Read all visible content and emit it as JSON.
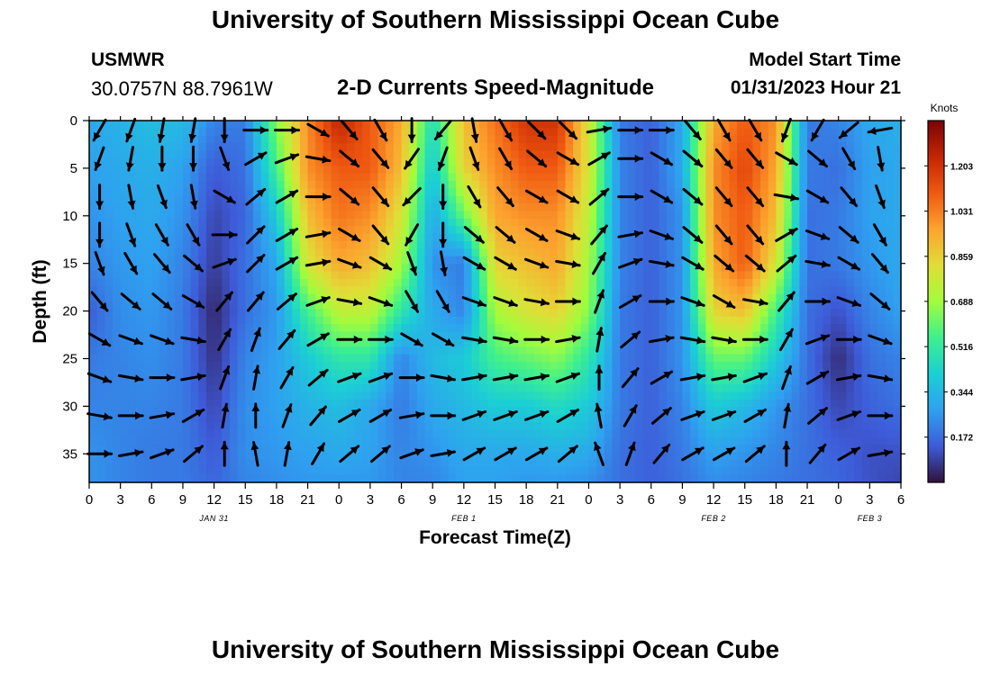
{
  "header": {
    "title": "University of Southern Mississippi Ocean Cube",
    "station": "USMWR",
    "coordinates": "30.0757N  88.7961W",
    "subtitle": "2-D Currents Speed-Magnitude",
    "start_label": "Model Start Time",
    "start_value": "01/31/2023 Hour 21"
  },
  "footer": {
    "title": "University of Southern Mississippi Ocean Cube"
  },
  "colors": {
    "palette": [
      "#30123b",
      "#3e5bd8",
      "#2fa0f0",
      "#1bcfd4",
      "#3ef08e",
      "#a2fc3c",
      "#e1dd37",
      "#fca32f",
      "#ef5911",
      "#c42503",
      "#7a0403"
    ],
    "arrow": "#000000"
  },
  "chart_data": {
    "type": "heatmap",
    "xlabel": "Forecast Time(Z)",
    "ylabel": "Depth (ft)",
    "x_range": [
      0,
      78
    ],
    "x_unit": "forecast hours from 00Z Jan 31",
    "x_ticks": [
      {
        "h": 0,
        "label": "0"
      },
      {
        "h": 3,
        "label": "3"
      },
      {
        "h": 6,
        "label": "6"
      },
      {
        "h": 9,
        "label": "9"
      },
      {
        "h": 12,
        "label": "12"
      },
      {
        "h": 15,
        "label": "15"
      },
      {
        "h": 18,
        "label": "18"
      },
      {
        "h": 21,
        "label": "21"
      },
      {
        "h": 24,
        "label": "0"
      },
      {
        "h": 27,
        "label": "3"
      },
      {
        "h": 30,
        "label": "6"
      },
      {
        "h": 33,
        "label": "9"
      },
      {
        "h": 36,
        "label": "12"
      },
      {
        "h": 39,
        "label": "15"
      },
      {
        "h": 42,
        "label": "18"
      },
      {
        "h": 45,
        "label": "21"
      },
      {
        "h": 48,
        "label": "0"
      },
      {
        "h": 51,
        "label": "3"
      },
      {
        "h": 54,
        "label": "6"
      },
      {
        "h": 57,
        "label": "9"
      },
      {
        "h": 60,
        "label": "12"
      },
      {
        "h": 63,
        "label": "15"
      },
      {
        "h": 66,
        "label": "18"
      },
      {
        "h": 69,
        "label": "21"
      },
      {
        "h": 72,
        "label": "0"
      },
      {
        "h": 75,
        "label": "3"
      },
      {
        "h": 78,
        "label": "6"
      }
    ],
    "date_labels": [
      {
        "h": 12,
        "label": "JAN 31"
      },
      {
        "h": 36,
        "label": "FEB 1"
      },
      {
        "h": 60,
        "label": "FEB 2"
      },
      {
        "h": 75,
        "label": "FEB 3"
      }
    ],
    "y_range": [
      0,
      38
    ],
    "y_inverted": true,
    "y_ticks": [
      0,
      5,
      10,
      15,
      20,
      25,
      30,
      35
    ],
    "colorbar": {
      "title": "Knots",
      "range": [
        0.0,
        1.375
      ],
      "tick_values": [
        1.203,
        1.031,
        0.859,
        0.688,
        0.516,
        0.344,
        0.172
      ],
      "tick_labels": [
        "1.203",
        "1.031",
        "0.859",
        "0.688",
        "0.516",
        "0.344",
        "0.172"
      ]
    },
    "grid": false,
    "speed_field": {
      "x_hours": [
        0,
        3,
        6,
        9,
        12,
        15,
        18,
        21,
        24,
        27,
        30,
        33,
        36,
        39,
        42,
        45,
        48,
        51,
        54,
        57,
        60,
        63,
        66,
        69,
        72,
        75,
        78
      ],
      "depths_ft": [
        0,
        5,
        10,
        15,
        20,
        25,
        30,
        35,
        38
      ],
      "values_knots": [
        [
          0.3,
          0.33,
          0.36,
          0.35,
          0.22,
          0.2,
          0.65,
          1.0,
          1.25,
          1.1,
          0.95,
          0.45,
          0.9,
          1.05,
          1.2,
          1.2,
          0.8,
          0.2,
          0.15,
          0.3,
          0.95,
          1.1,
          1.0,
          0.2,
          0.22,
          0.3,
          0.32
        ],
        [
          0.28,
          0.3,
          0.32,
          0.28,
          0.14,
          0.18,
          0.55,
          1.0,
          1.1,
          1.1,
          0.9,
          0.38,
          0.85,
          1.0,
          1.1,
          1.1,
          0.8,
          0.22,
          0.15,
          0.3,
          1.0,
          1.15,
          0.95,
          0.2,
          0.18,
          0.28,
          0.3
        ],
        [
          0.25,
          0.28,
          0.3,
          0.25,
          0.1,
          0.16,
          0.4,
          0.9,
          1.05,
          1.0,
          0.8,
          0.3,
          0.6,
          0.95,
          1.0,
          1.0,
          0.75,
          0.22,
          0.15,
          0.25,
          1.0,
          1.1,
          0.9,
          0.18,
          0.2,
          0.28,
          0.3
        ],
        [
          0.22,
          0.26,
          0.28,
          0.22,
          0.08,
          0.18,
          0.3,
          0.8,
          0.95,
          0.9,
          0.7,
          0.25,
          0.2,
          0.85,
          0.9,
          0.95,
          0.7,
          0.22,
          0.15,
          0.25,
          0.95,
          1.1,
          0.8,
          0.18,
          0.2,
          0.26,
          0.3
        ],
        [
          0.14,
          0.24,
          0.26,
          0.2,
          0.04,
          0.18,
          0.26,
          0.55,
          0.75,
          0.75,
          0.5,
          0.3,
          0.22,
          0.7,
          0.8,
          0.85,
          0.65,
          0.2,
          0.15,
          0.25,
          0.85,
          0.9,
          0.55,
          0.18,
          0.12,
          0.22,
          0.28
        ],
        [
          0.2,
          0.22,
          0.24,
          0.2,
          0.06,
          0.22,
          0.28,
          0.4,
          0.5,
          0.5,
          0.22,
          0.35,
          0.4,
          0.55,
          0.6,
          0.65,
          0.5,
          0.2,
          0.15,
          0.25,
          0.6,
          0.6,
          0.4,
          0.18,
          0.05,
          0.18,
          0.22
        ],
        [
          0.22,
          0.22,
          0.22,
          0.2,
          0.1,
          0.24,
          0.28,
          0.33,
          0.36,
          0.3,
          0.2,
          0.3,
          0.35,
          0.4,
          0.4,
          0.45,
          0.4,
          0.2,
          0.15,
          0.22,
          0.4,
          0.35,
          0.26,
          0.18,
          0.1,
          0.15,
          0.18
        ],
        [
          0.25,
          0.22,
          0.2,
          0.2,
          0.14,
          0.24,
          0.26,
          0.28,
          0.3,
          0.28,
          0.22,
          0.25,
          0.3,
          0.3,
          0.3,
          0.32,
          0.3,
          0.18,
          0.15,
          0.2,
          0.28,
          0.25,
          0.22,
          0.18,
          0.15,
          0.12,
          0.12
        ],
        [
          0.25,
          0.22,
          0.2,
          0.2,
          0.16,
          0.22,
          0.24,
          0.26,
          0.26,
          0.26,
          0.22,
          0.22,
          0.28,
          0.28,
          0.26,
          0.26,
          0.24,
          0.18,
          0.15,
          0.18,
          0.24,
          0.22,
          0.2,
          0.18,
          0.16,
          0.12,
          0.1
        ]
      ]
    },
    "vectors": {
      "depths_ft": [
        1,
        4,
        8,
        12,
        15,
        19,
        23,
        27,
        31,
        35
      ],
      "x_hours": [
        1,
        4,
        7,
        10,
        13,
        16,
        19,
        22,
        25,
        28,
        31,
        34,
        37,
        40,
        43,
        46,
        49,
        52,
        55,
        58,
        61,
        64,
        67,
        70,
        73,
        76
      ],
      "directions_deg": [
        [
          210,
          200,
          190,
          190,
          180,
          90,
          90,
          120,
          140,
          150,
          180,
          220,
          170,
          150,
          135,
          135,
          80,
          90,
          90,
          140,
          150,
          150,
          200,
          210,
          230,
          260
        ],
        [
          200,
          190,
          180,
          180,
          160,
          60,
          70,
          100,
          130,
          140,
          215,
          200,
          160,
          150,
          130,
          120,
          60,
          90,
          120,
          130,
          140,
          140,
          120,
          130,
          150,
          170
        ],
        [
          180,
          170,
          160,
          170,
          120,
          50,
          60,
          90,
          130,
          140,
          225,
          180,
          150,
          140,
          120,
          120,
          50,
          90,
          120,
          130,
          140,
          140,
          100,
          120,
          140,
          160
        ],
        [
          180,
          160,
          150,
          150,
          90,
          45,
          60,
          80,
          120,
          140,
          210,
          180,
          130,
          130,
          120,
          110,
          40,
          80,
          110,
          130,
          140,
          140,
          60,
          110,
          130,
          150
        ],
        [
          160,
          150,
          140,
          130,
          70,
          45,
          60,
          80,
          110,
          120,
          160,
          170,
          120,
          120,
          110,
          100,
          30,
          70,
          100,
          120,
          130,
          130,
          50,
          100,
          120,
          140
        ],
        [
          140,
          130,
          130,
          120,
          40,
          40,
          50,
          70,
          100,
          110,
          150,
          150,
          110,
          110,
          100,
          90,
          20,
          60,
          90,
          110,
          120,
          100,
          40,
          90,
          110,
          130
        ],
        [
          120,
          110,
          110,
          100,
          30,
          20,
          40,
          60,
          90,
          90,
          120,
          120,
          100,
          100,
          90,
          80,
          10,
          50,
          80,
          100,
          100,
          90,
          30,
          70,
          90,
          110
        ],
        [
          110,
          100,
          90,
          80,
          20,
          10,
          30,
          50,
          70,
          70,
          90,
          100,
          80,
          80,
          80,
          70,
          0,
          40,
          60,
          80,
          80,
          70,
          20,
          60,
          80,
          100
        ],
        [
          100,
          90,
          80,
          60,
          10,
          0,
          20,
          40,
          60,
          60,
          80,
          90,
          70,
          70,
          70,
          60,
          -10,
          30,
          50,
          70,
          70,
          60,
          10,
          50,
          70,
          90
        ],
        [
          90,
          80,
          70,
          50,
          0,
          -10,
          10,
          30,
          50,
          50,
          70,
          80,
          60,
          60,
          60,
          50,
          -20,
          20,
          40,
          60,
          60,
          50,
          0,
          40,
          60,
          80
        ]
      ]
    }
  }
}
